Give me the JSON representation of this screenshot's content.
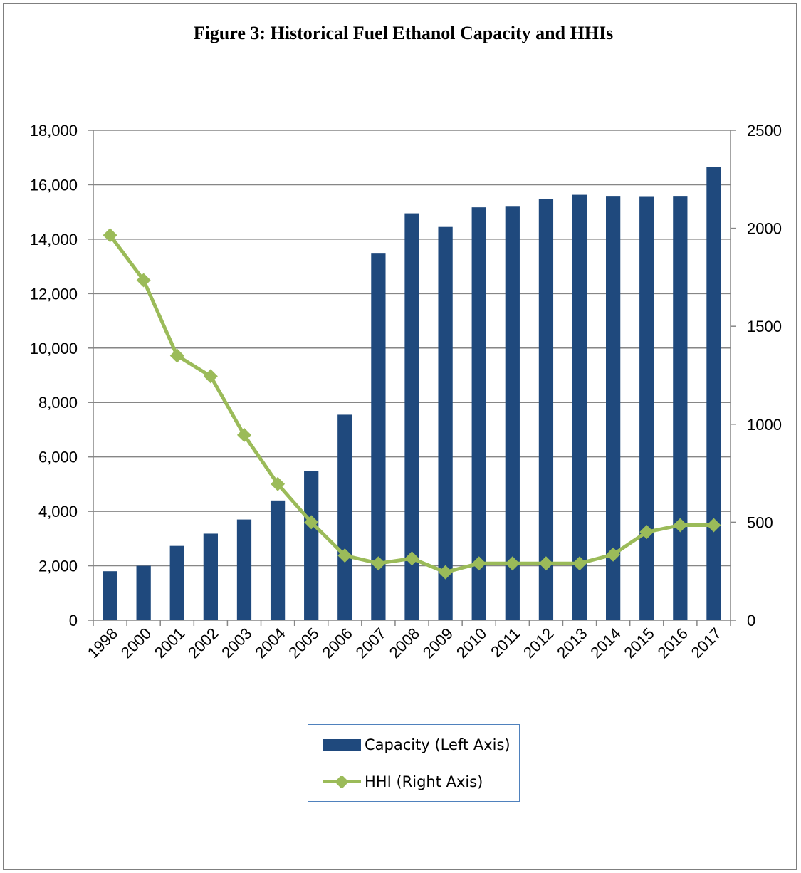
{
  "chart_data": {
    "type": "bar+line",
    "title": "Figure 3: Historical Fuel Ethanol Capacity and HHIs",
    "categories": [
      "1998",
      "2000",
      "2001",
      "2002",
      "2003",
      "2004",
      "2005",
      "2006",
      "2007",
      "2008",
      "2009",
      "2010",
      "2011",
      "2012",
      "2013",
      "2014",
      "2015",
      "2016",
      "2017"
    ],
    "series": [
      {
        "name": "Capacity (Left Axis)",
        "type": "bar",
        "axis": "left",
        "color": "#1f497d",
        "values": [
          1800,
          2000,
          2730,
          3180,
          3700,
          4400,
          5470,
          7550,
          13470,
          14950,
          14450,
          15170,
          15220,
          15470,
          15630,
          15590,
          15580,
          15590,
          16650
        ]
      },
      {
        "name": "HHI (Right Axis)",
        "type": "line",
        "axis": "right",
        "color": "#9bbb59",
        "values": [
          1965,
          1735,
          1350,
          1245,
          945,
          695,
          500,
          330,
          290,
          315,
          245,
          290,
          290,
          290,
          290,
          335,
          450,
          485,
          485
        ]
      }
    ],
    "left_axis": {
      "ylim": [
        0,
        18000
      ],
      "ticks": [
        0,
        2000,
        4000,
        6000,
        8000,
        10000,
        12000,
        14000,
        16000,
        18000
      ],
      "tick_labels": [
        "0",
        "2,000",
        "4,000",
        "6,000",
        "8,000",
        "10,000",
        "12,000",
        "14,000",
        "16,000",
        "18,000"
      ]
    },
    "right_axis": {
      "ylim": [
        0,
        2500
      ],
      "ticks": [
        0,
        500,
        1000,
        1500,
        2000,
        2500
      ],
      "tick_labels": [
        "0",
        "500",
        "1000",
        "1500",
        "2000",
        "2500"
      ]
    },
    "grid": true,
    "legend_position": "bottom",
    "xlabel": "",
    "ylabel": ""
  },
  "legend": {
    "capacity_label": "Capacity (Left Axis)",
    "hhi_label": "HHI (Right Axis)"
  }
}
